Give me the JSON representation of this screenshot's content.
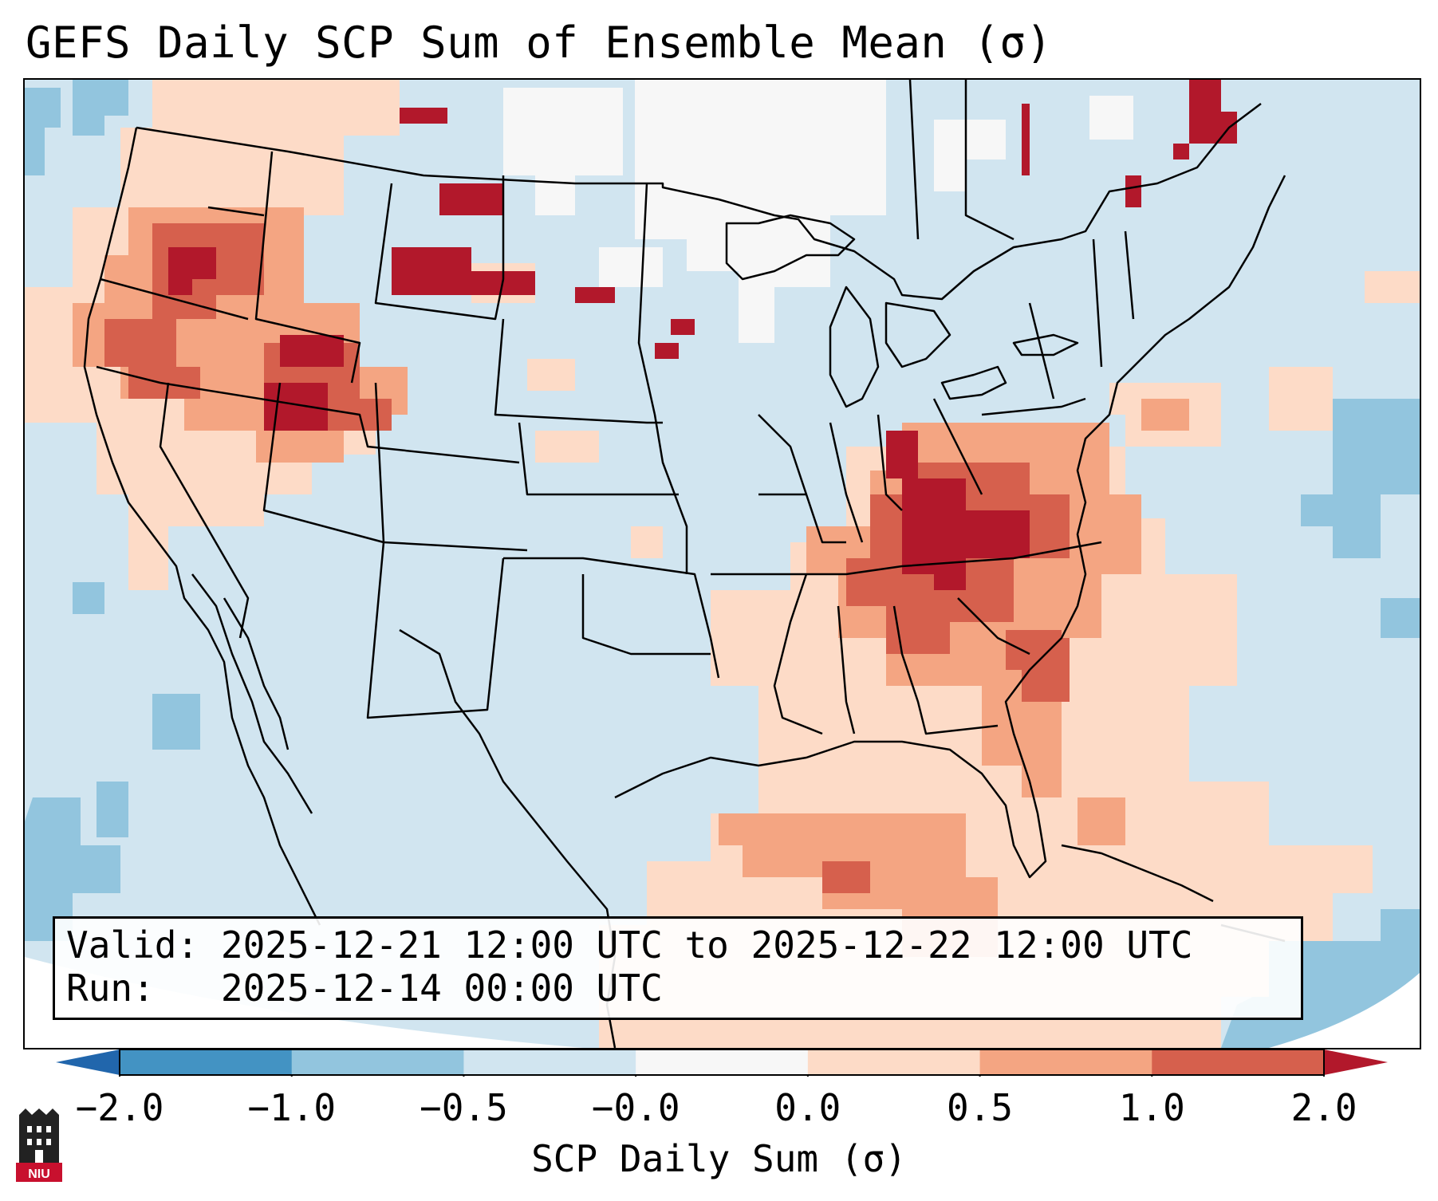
{
  "title": "GEFS Daily SCP Sum of Ensemble Mean (σ)",
  "info": {
    "valid_label": "Valid:",
    "valid_value": "2025-12-21 12:00 UTC to 2025-12-22 12:00 UTC",
    "run_label": "Run:",
    "run_value": "2025-12-14 00:00 UTC"
  },
  "colorbar": {
    "label": "SCP Daily Sum (σ)",
    "ticks": [
      "−2.0",
      "−1.0",
      "−0.5",
      "−0.0",
      "0.0",
      "0.5",
      "1.0",
      "2.0"
    ],
    "bins": [
      {
        "from": -2.0,
        "to": -1.0,
        "color": "#4393c3"
      },
      {
        "from": -1.0,
        "to": -0.5,
        "color": "#92c5de"
      },
      {
        "from": -0.5,
        "to": -0.0,
        "color": "#d1e5f0"
      },
      {
        "from": -0.0,
        "to": 0.0,
        "color": "#f7f7f7"
      },
      {
        "from": 0.0,
        "to": 0.5,
        "color": "#fddbc7"
      },
      {
        "from": 0.5,
        "to": 1.0,
        "color": "#f4a582"
      },
      {
        "from": 1.0,
        "to": 2.0,
        "color": "#d6604d"
      }
    ],
    "under_color": "#2166ac",
    "over_color": "#b2182b"
  },
  "logo": {
    "text": "NIU",
    "color": "#c8102e"
  }
}
